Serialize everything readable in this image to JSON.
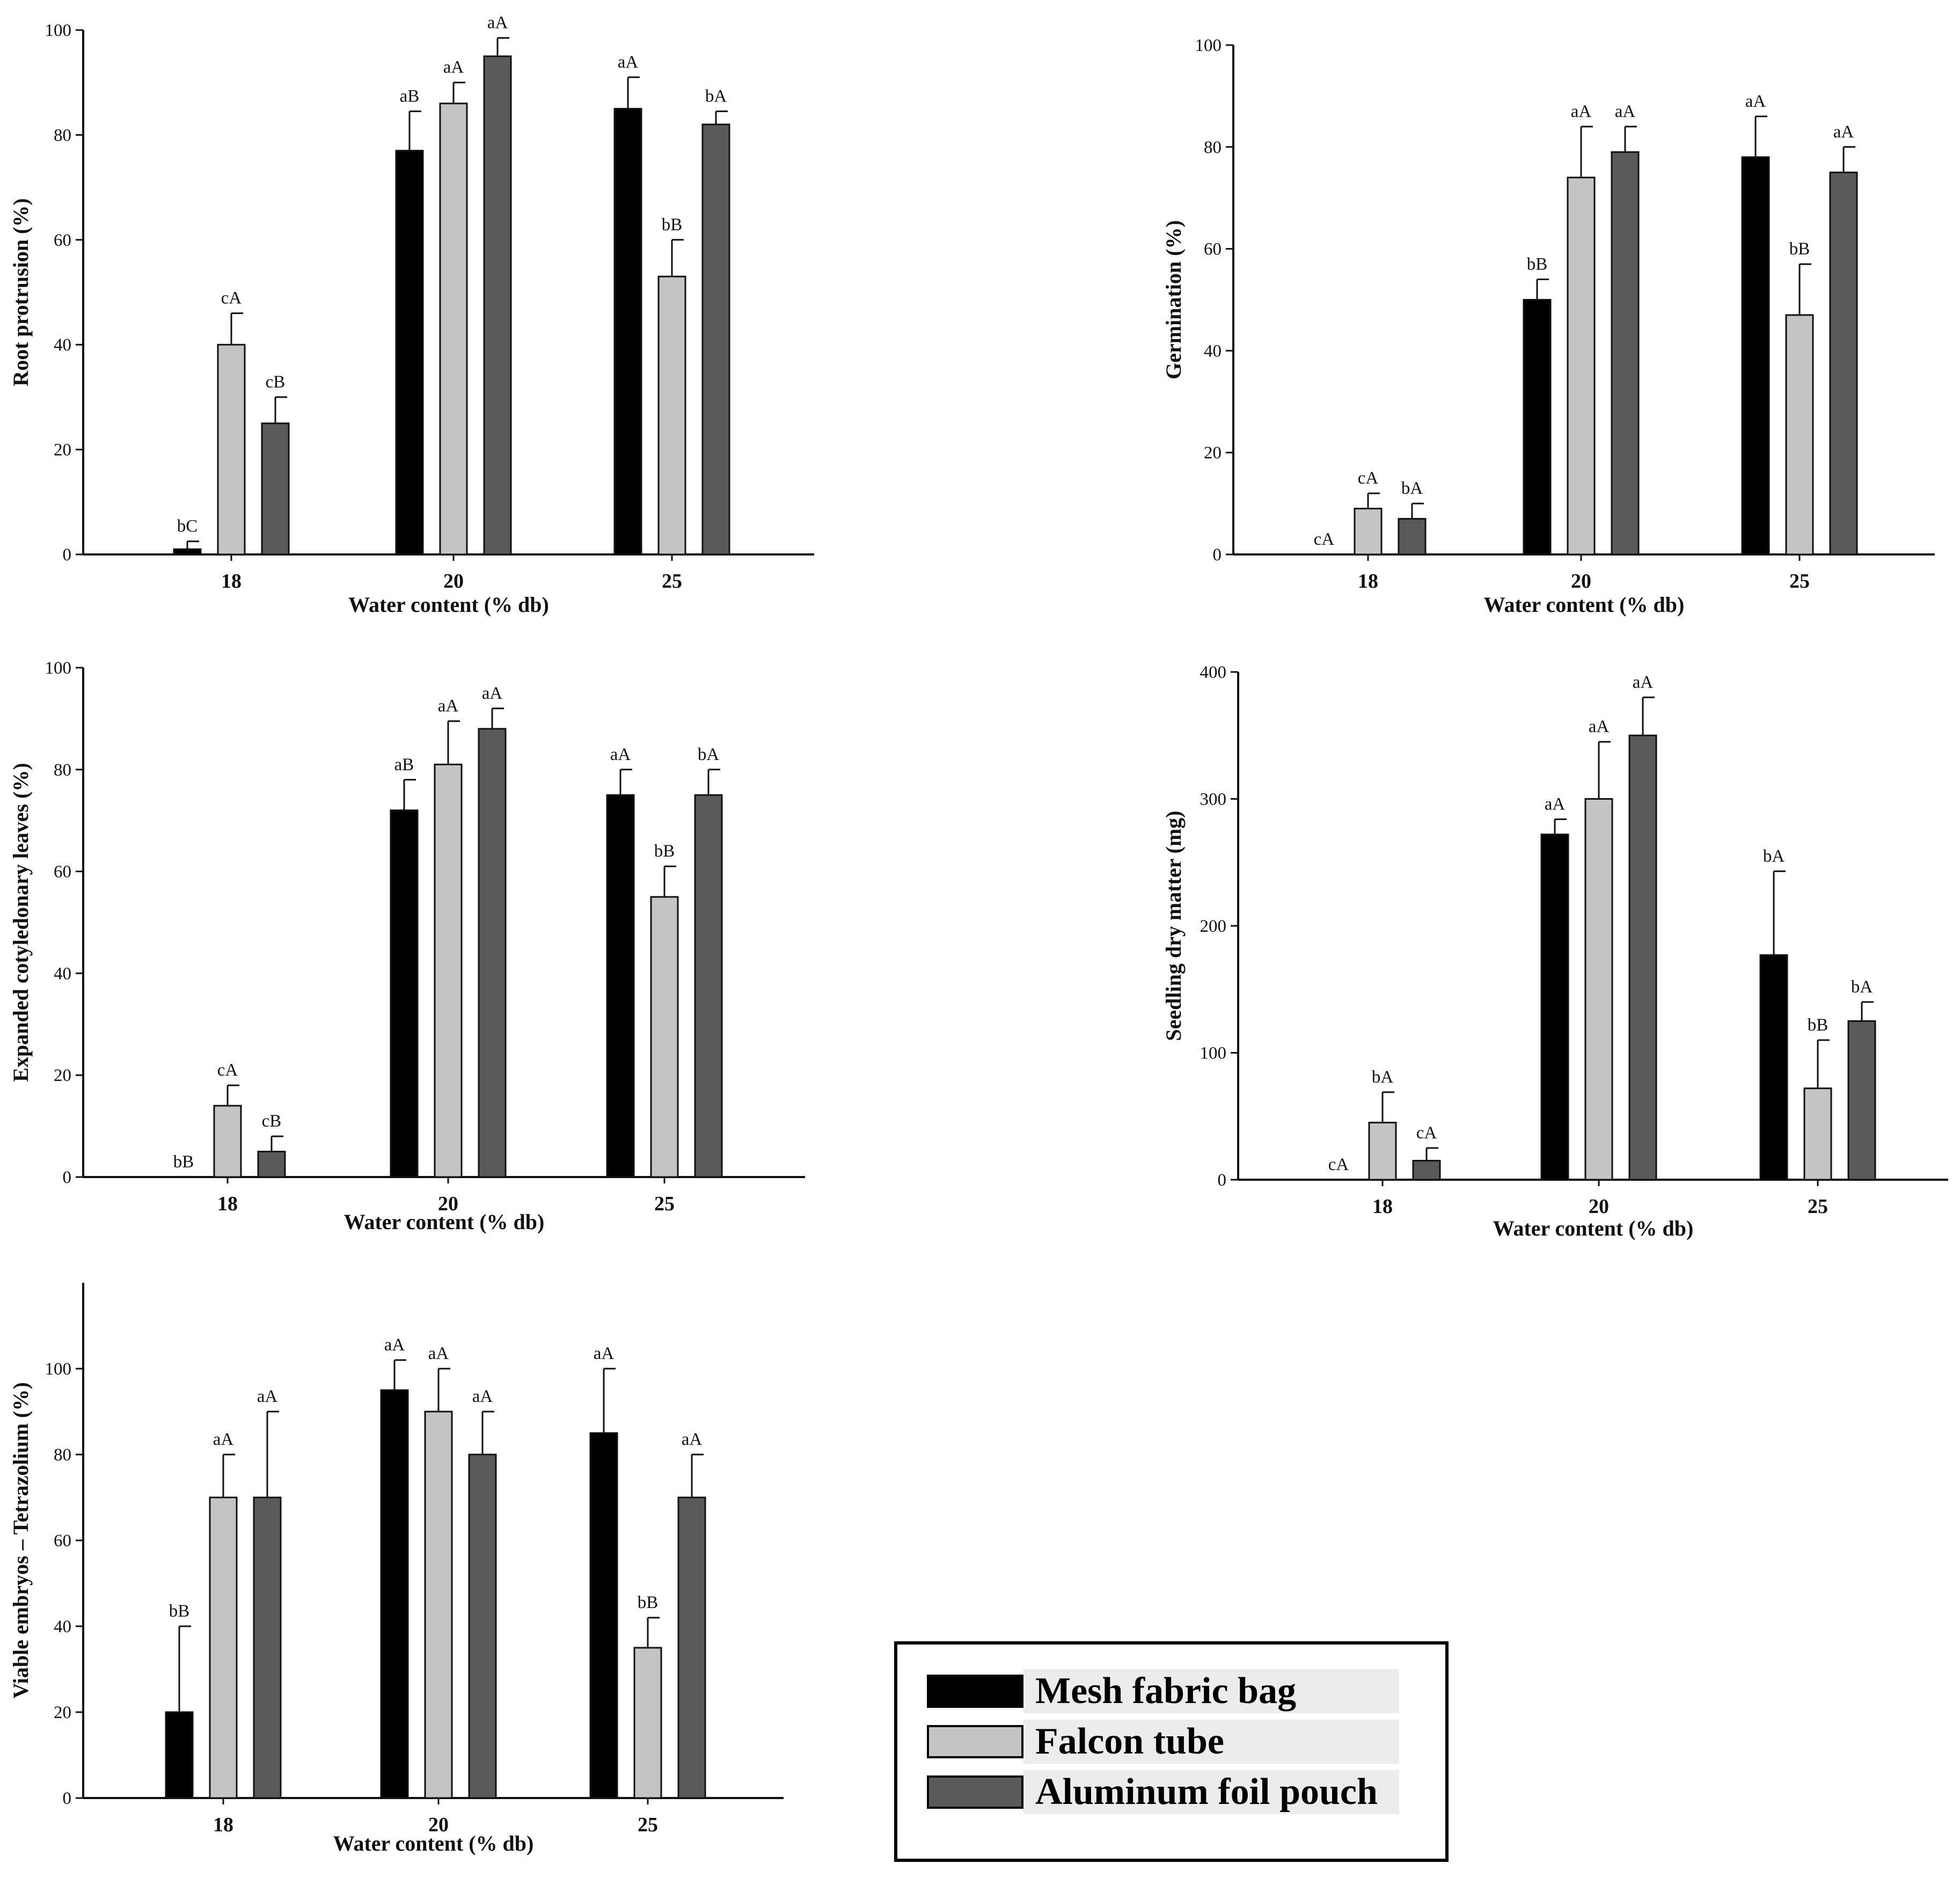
{
  "colors": {
    "mesh": "#000000",
    "falcon": "#c4c4c4",
    "aluminum": "#5a5a5a"
  },
  "legend": {
    "items": [
      {
        "label": "Mesh fabric bag",
        "color": "#000000"
      },
      {
        "label": "Falcon tube",
        "color": "#c4c4c4"
      },
      {
        "label": "Aluminum foil pouch",
        "color": "#5a5a5a"
      }
    ]
  },
  "chart_data": [
    {
      "type": "bar",
      "ylabel": "Root protrusion (%)",
      "xlabel": "Water content (% db)",
      "categories": [
        "18",
        "20",
        "25"
      ],
      "ylim": [
        0,
        100
      ],
      "yticks": [
        "0",
        "20",
        "40",
        "60",
        "80",
        "100"
      ],
      "series": [
        {
          "name": "Mesh fabric bag",
          "values": [
            1,
            77,
            85
          ],
          "errors": [
            1.5,
            7.5,
            6
          ],
          "labels": [
            "bC",
            "aB",
            "aA"
          ]
        },
        {
          "name": "Falcon tube",
          "values": [
            40,
            86,
            53
          ],
          "errors": [
            6,
            4,
            7
          ],
          "labels": [
            "cA",
            "aA",
            "bB"
          ]
        },
        {
          "name": "Aluminum foil pouch",
          "values": [
            25,
            95,
            82
          ],
          "errors": [
            5,
            3.5,
            2.5
          ],
          "labels": [
            "cB",
            "aA",
            "bA"
          ]
        }
      ]
    },
    {
      "type": "bar",
      "ylabel": "Germination (%)",
      "xlabel": "Water content (% db)",
      "categories": [
        "18",
        "20",
        "25"
      ],
      "ylim": [
        0,
        100
      ],
      "yticks": [
        "0",
        "20",
        "40",
        "60",
        "80",
        "100"
      ],
      "series": [
        {
          "name": "Mesh fabric bag",
          "values": [
            0,
            50,
            78
          ],
          "errors": [
            0,
            4,
            8
          ],
          "labels": [
            "cA",
            "bB",
            "aA"
          ]
        },
        {
          "name": "Falcon tube",
          "values": [
            9,
            74,
            47
          ],
          "errors": [
            3,
            10,
            10
          ],
          "labels": [
            "cA",
            "aA",
            "bB"
          ]
        },
        {
          "name": "Aluminum foil pouch",
          "values": [
            7,
            79,
            75
          ],
          "errors": [
            3,
            5,
            5
          ],
          "labels": [
            "bA",
            "aA",
            "aA"
          ]
        }
      ]
    },
    {
      "type": "bar",
      "ylabel": "Expanded cotyledonary leaves (%)",
      "xlabel": "Water content (% db)",
      "categories": [
        "18",
        "20",
        "25"
      ],
      "ylim": [
        0,
        100
      ],
      "yticks": [
        "0",
        "20",
        "40",
        "60",
        "80",
        "100"
      ],
      "series": [
        {
          "name": "Mesh fabric bag",
          "values": [
            0,
            72,
            75
          ],
          "errors": [
            0,
            6,
            5
          ],
          "labels": [
            "bB",
            "aB",
            "aA"
          ]
        },
        {
          "name": "Falcon tube",
          "values": [
            14,
            81,
            55
          ],
          "errors": [
            4,
            8.5,
            6
          ],
          "labels": [
            "cA",
            "aA",
            "bB"
          ]
        },
        {
          "name": "Aluminum foil pouch",
          "values": [
            5,
            88,
            75
          ],
          "errors": [
            3,
            4,
            5
          ],
          "labels": [
            "cB",
            "aA",
            "bA"
          ]
        }
      ]
    },
    {
      "type": "bar",
      "ylabel": "Seedling dry matter (mg)",
      "xlabel": "Water content (% db)",
      "categories": [
        "18",
        "20",
        "25"
      ],
      "ylim": [
        0,
        400
      ],
      "yticks": [
        "0",
        "100",
        "200",
        "300",
        "400"
      ],
      "series": [
        {
          "name": "Mesh fabric bag",
          "values": [
            0,
            272,
            177
          ],
          "errors": [
            0,
            12,
            66
          ],
          "labels": [
            "cA",
            "aA",
            "bA"
          ]
        },
        {
          "name": "Falcon tube",
          "values": [
            45,
            300,
            72
          ],
          "errors": [
            24,
            45,
            38
          ],
          "labels": [
            "bA",
            "aA",
            "bB"
          ]
        },
        {
          "name": "Aluminum foil pouch",
          "values": [
            15,
            350,
            125
          ],
          "errors": [
            10,
            30,
            15
          ],
          "labels": [
            "cA",
            "aA",
            "bA"
          ]
        }
      ]
    },
    {
      "type": "bar",
      "ylabel": "Viable embryos – Tetrazolium (%)",
      "xlabel": "Water content (% db)",
      "categories": [
        "18",
        "20",
        "25"
      ],
      "ylim": [
        0,
        120
      ],
      "yticks": [
        "0",
        "20",
        "40",
        "60",
        "80",
        "100"
      ],
      "series": [
        {
          "name": "Mesh fabric bag",
          "values": [
            20,
            95,
            85
          ],
          "errors": [
            20,
            7,
            15
          ],
          "labels": [
            "bB",
            "aA",
            "aA"
          ]
        },
        {
          "name": "Falcon tube",
          "values": [
            70,
            90,
            35
          ],
          "errors": [
            10,
            10,
            7
          ],
          "labels": [
            "aA",
            "aA",
            "bB"
          ]
        },
        {
          "name": "Aluminum foil pouch",
          "values": [
            70,
            80,
            70
          ],
          "errors": [
            20,
            10,
            10
          ],
          "labels": [
            "aA",
            "aA",
            "aA"
          ]
        }
      ]
    }
  ]
}
